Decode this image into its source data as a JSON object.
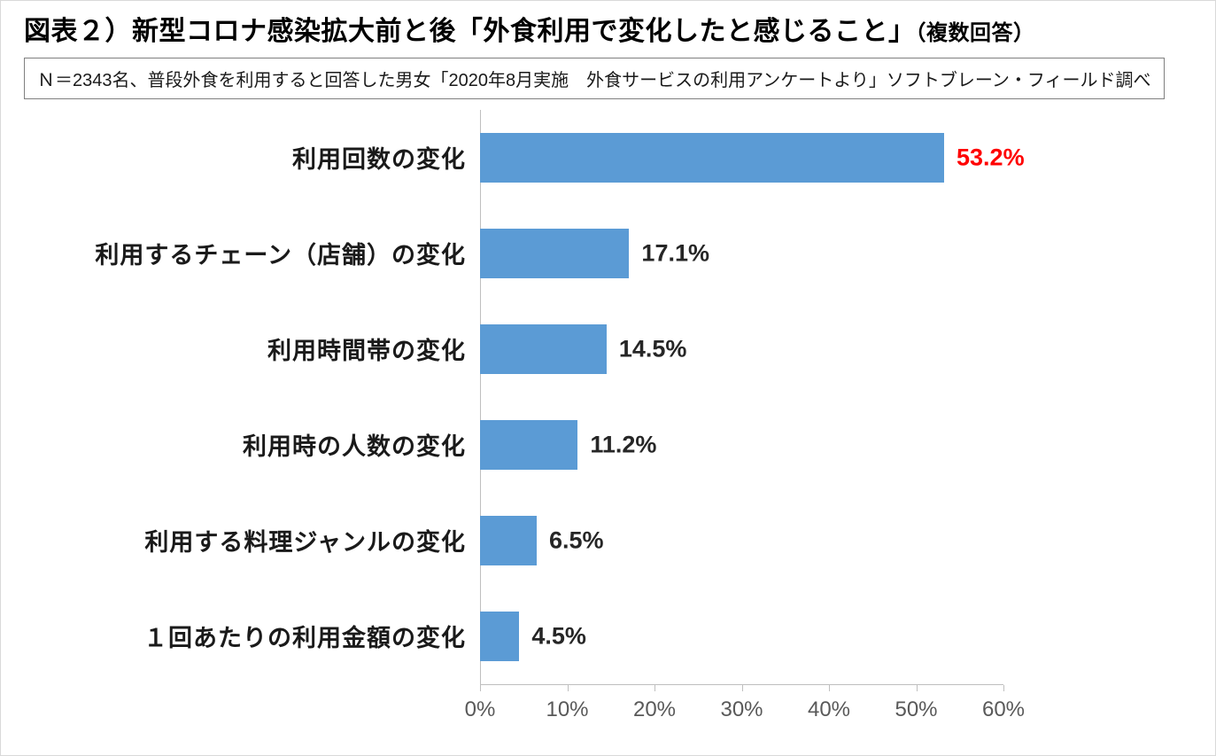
{
  "header": {
    "title_main": "図表２）新型コロナ感染拡大前と後「外食利用で変化したと感じること」",
    "title_suffix": "（複数回答）",
    "note": "Ｎ＝2343名、普段外食を利用すると回答した男女「2020年8月実施　外食サービスの利用アンケートより」ソフトブレーン・フィールド調べ"
  },
  "chart_data": {
    "type": "bar",
    "orientation": "horizontal",
    "title": "図表２）新型コロナ感染拡大前と後「外食利用で変化したと感じること」（複数回答）",
    "categories": [
      "利用回数の変化",
      "利用するチェーン（店舗）の変化",
      "利用時間帯の変化",
      "利用時の人数の変化",
      "利用する料理ジャンルの変化",
      "１回あたりの利用金額の変化"
    ],
    "values": [
      53.2,
      17.1,
      14.5,
      11.2,
      6.5,
      4.5
    ],
    "value_labels": [
      "53.2%",
      "17.1%",
      "14.5%",
      "11.2%",
      "6.5%",
      "4.5%"
    ],
    "highlight_index": 0,
    "xlim": [
      0,
      60
    ],
    "x_ticks": [
      "0%",
      "10%",
      "20%",
      "30%",
      "40%",
      "50%",
      "60%"
    ],
    "grid": false,
    "legend": "none",
    "bar_color": "#5b9bd5",
    "highlight_value_color": "#ff0000",
    "value_color": "#262626"
  }
}
